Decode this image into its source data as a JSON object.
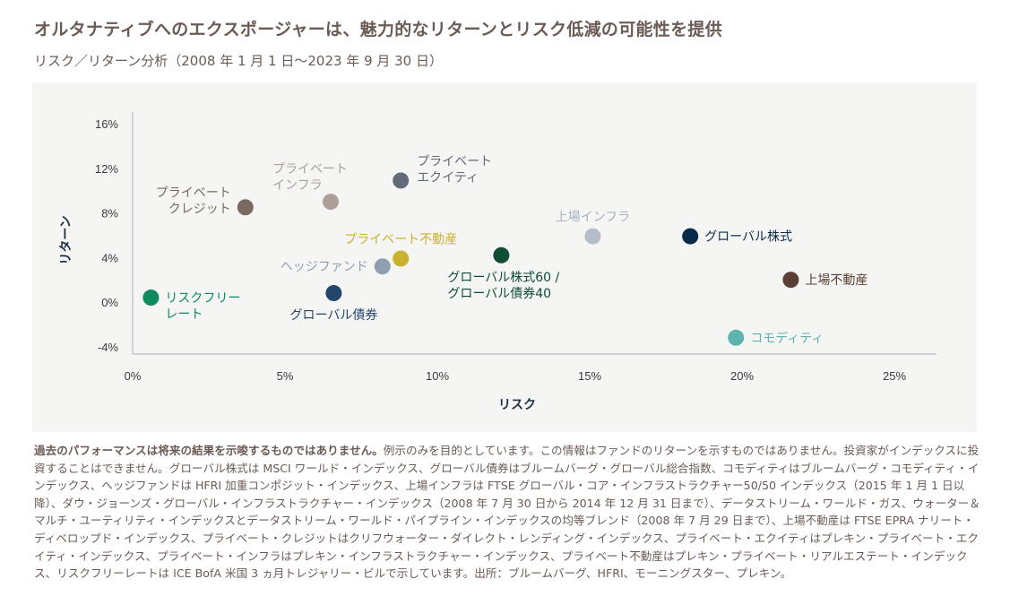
{
  "title": "オルタナティブへのエクスポージャーは、魅力的なリターンとリスク低減の可能性を提供",
  "subtitle": "リスク／リターン分析（2008 年 1 月 1 日〜2023 年 9 月 30 日）",
  "chart_data": {
    "type": "scatter",
    "xlabel": "リスク",
    "ylabel": "リターン",
    "xlim": [
      0,
      25
    ],
    "ylim": [
      -4,
      16
    ],
    "xticks": [
      "0%",
      "5%",
      "10%",
      "15%",
      "20%",
      "25%"
    ],
    "yticks": [
      "16%",
      "12%",
      "8%",
      "4%",
      "0%",
      "-4%"
    ],
    "grid": false,
    "points": [
      {
        "label": "リスクフリー\nレート",
        "x": 0.6,
        "y": 0.4,
        "color": "#0e8a5f",
        "pos": "right"
      },
      {
        "label": "プライベート\nクレジット",
        "x": 3.7,
        "y": 8.5,
        "color": "#7a6960",
        "pos": "left"
      },
      {
        "label": "プライベート\nインフラ",
        "x": 6.5,
        "y": 9.0,
        "color": "#ad9e98",
        "pos": "above-left"
      },
      {
        "label": "プライベート\nエクイティ",
        "x": 8.8,
        "y": 10.9,
        "color": "#636b78",
        "pos": "right-up"
      },
      {
        "label": "プライベート不動産",
        "x": 8.8,
        "y": 3.9,
        "color": "#c9b22e",
        "pos": "above"
      },
      {
        "label": "ヘッジファンド",
        "x": 8.2,
        "y": 3.2,
        "color": "#8d9fb0",
        "pos": "left"
      },
      {
        "label": "グローバル債券",
        "x": 6.6,
        "y": 0.8,
        "color": "#24466b",
        "pos": "below"
      },
      {
        "label": "グローバル株式60 /\nグローバル債券40",
        "x": 12.1,
        "y": 4.2,
        "color": "#0f4d34",
        "pos": "below"
      },
      {
        "label": "上場インフラ",
        "x": 15.1,
        "y": 5.9,
        "color": "#b4bdc8",
        "pos": "above"
      },
      {
        "label": "グローバル株式",
        "x": 18.3,
        "y": 5.9,
        "color": "#0a2a4a",
        "pos": "right"
      },
      {
        "label": "上場不動産",
        "x": 21.6,
        "y": 2.0,
        "color": "#5a4034",
        "pos": "right"
      },
      {
        "label": "コモディティ",
        "x": 19.8,
        "y": -3.2,
        "color": "#5fb3ae",
        "pos": "right"
      }
    ]
  },
  "footnote": {
    "bold": "過去のパフォーマンスは将来の結果を示唆するものではありません。",
    "text": "例示のみを目的としています。この情報はファンドのリターンを示すものではありません。投資家がインデックスに投資することはできません。グローバル株式は MSCI ワールド・インデックス、グローバル債券はブルームバーグ・グローバル総合指数、コモディティはブルームバーグ・コモディティ・インデックス、ヘッジファンドは HFRI 加重コンポジット・インデックス、上場インフラは FTSE グローバル・コア・インフラストラクチャー50/50 インデックス（2015 年 1 月 1 日以降）、ダウ・ジョーンズ・グローバル・インフラストラクチャー・インデックス（2008 年 7 月 30 日から 2014 年 12 月 31 日まで）、データストリーム・ワールド・ガス、ウォーター＆マルチ・ユーティリティ・インデックスとデータストリーム・ワールド・パイプライン・インデックスの均等ブレンド（2008 年 7 月 29 日まで）、上場不動産は FTSE EPRA ナリート・ディベロップド・インデックス、プライベート・クレジットはクリフウォーター・ダイレクト・レンディング・インデックス、プライベート・エクイティはプレキン・プライベート・エクイティ・インデックス、プライベート・インフラはプレキン・インフラストラクチャー・インデックス、プライベート不動産はプレキン・プライベート・リアルエステート・インデックス、リスクフリーレートは ICE BofA 米国 3 ヵ月トレジャリー・ビルで示しています。出所：ブルームバーグ、HFRI、モーニングスター、プレキン。"
  }
}
